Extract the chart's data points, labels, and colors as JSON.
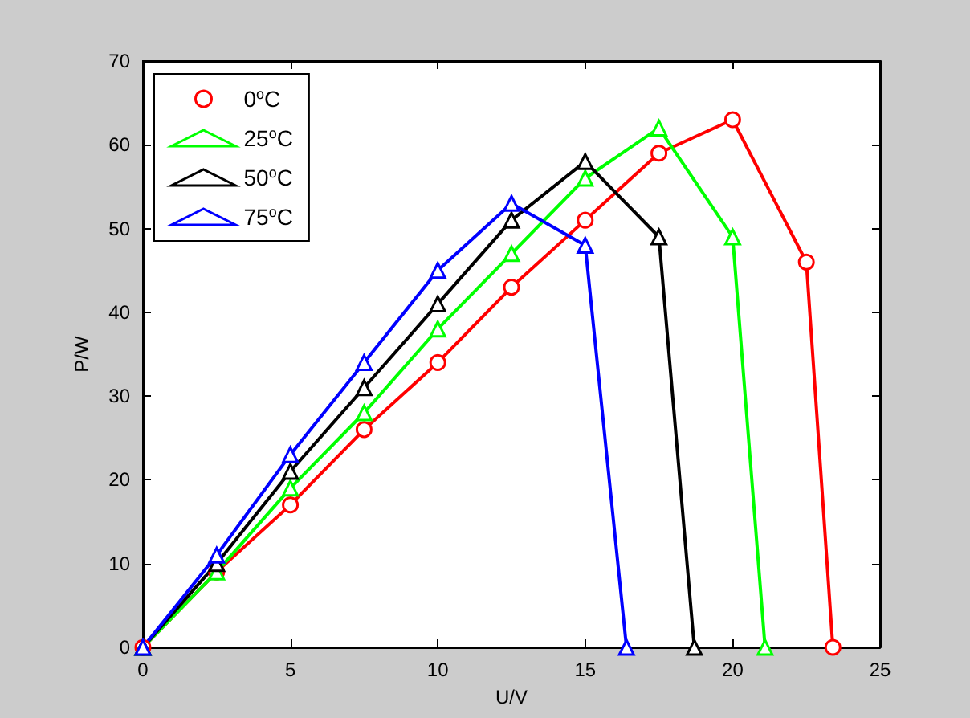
{
  "chart_data": {
    "type": "line",
    "xlabel": "U/V",
    "ylabel": "P/W",
    "xlim": [
      0,
      25
    ],
    "xticks": [
      0,
      5,
      10,
      15,
      20,
      25
    ],
    "ylim": [
      0,
      70
    ],
    "yticks": [
      0,
      10,
      20,
      30,
      40,
      50,
      60,
      70
    ],
    "grid": false,
    "legend": "top left",
    "line_style": "solid",
    "series": [
      {
        "name": "0$^{o}$C",
        "color": "#ff0000",
        "marker": "circle",
        "x": [
          0,
          2.5,
          5,
          7.5,
          10,
          12.5,
          15,
          17.5,
          20,
          22.5,
          23.4
        ],
        "values": [
          0,
          9,
          17,
          26,
          34,
          43,
          51,
          59,
          63,
          46,
          0
        ]
      },
      {
        "name": "25$^{o}$C",
        "color": "#00ff00",
        "marker": "triangle",
        "x": [
          0,
          2.5,
          5,
          7.5,
          10,
          12.5,
          15,
          17.5,
          20,
          21.1
        ],
        "values": [
          0,
          9,
          19,
          28,
          38,
          47,
          56,
          62,
          49,
          0
        ]
      },
      {
        "name": "50$^{o}$C",
        "color": "#000000",
        "marker": "triangle",
        "x": [
          0,
          2.5,
          5,
          7.5,
          10,
          12.5,
          15,
          17.5,
          18.7
        ],
        "values": [
          0,
          10,
          21,
          31,
          41,
          51,
          58,
          49,
          0
        ]
      },
      {
        "name": "75$^{o}$C",
        "color": "#0000ff",
        "marker": "triangle",
        "x": [
          0,
          2.5,
          5,
          7.5,
          10,
          12.5,
          15,
          16.4
        ],
        "values": [
          0,
          11,
          23,
          34,
          45,
          53,
          48,
          0
        ]
      }
    ]
  }
}
